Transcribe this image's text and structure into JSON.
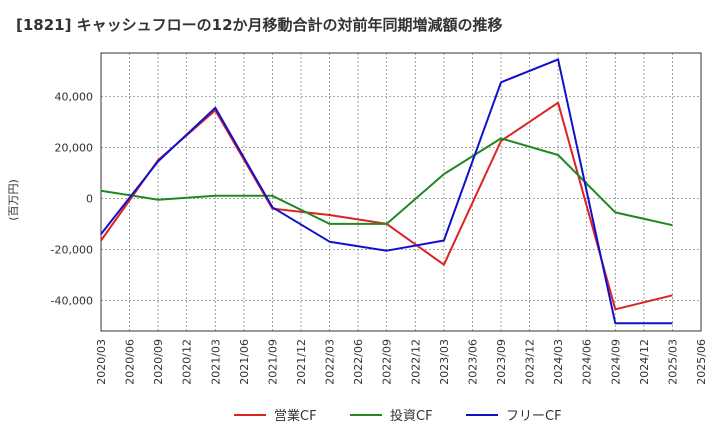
{
  "chart_data": {
    "type": "line",
    "title": "[1821]  キャッシュフローの12か月移動合計の対前年同期増減額の推移",
    "ylabel": "(百万円)",
    "xlabel": "",
    "ylim": [
      -52000,
      57000
    ],
    "yticks": [
      -40000,
      -20000,
      0,
      20000,
      40000
    ],
    "ytick_labels": [
      "-40,000",
      "-20,000",
      "0",
      "20,000",
      "40,000"
    ],
    "x_ticks": [
      "2020/03",
      "2020/06",
      "2020/09",
      "2020/12",
      "2021/03",
      "2021/06",
      "2021/09",
      "2021/12",
      "2022/03",
      "2022/06",
      "2022/09",
      "2022/12",
      "2023/03",
      "2023/06",
      "2023/09",
      "2023/12",
      "2024/03",
      "2024/06",
      "2024/09",
      "2024/12",
      "2025/03",
      "2025/06"
    ],
    "grid": true,
    "legend_position": "bottom",
    "series": [
      {
        "name": "営業CF",
        "color": "#dd2222",
        "points": [
          [
            0,
            -16500
          ],
          [
            2,
            15000
          ],
          [
            4,
            34500
          ],
          [
            6,
            -4000
          ],
          [
            8,
            -6500
          ],
          [
            10,
            -10000
          ],
          [
            12,
            -26000
          ],
          [
            14,
            22500
          ],
          [
            16,
            37500
          ],
          [
            18,
            -43500
          ],
          [
            20,
            -38000
          ]
        ]
      },
      {
        "name": "投資CF",
        "color": "#228822",
        "points": [
          [
            0,
            3000
          ],
          [
            2,
            -500
          ],
          [
            4,
            1000
          ],
          [
            6,
            1000
          ],
          [
            8,
            -10000
          ],
          [
            10,
            -10000
          ],
          [
            12,
            9500
          ],
          [
            14,
            23500
          ],
          [
            16,
            17000
          ],
          [
            18,
            -5500
          ],
          [
            20,
            -10500
          ]
        ]
      },
      {
        "name": "フリーCF",
        "color": "#1111cc",
        "points": [
          [
            0,
            -14000
          ],
          [
            2,
            14500
          ],
          [
            4,
            35500
          ],
          [
            6,
            -3500
          ],
          [
            8,
            -17000
          ],
          [
            10,
            -20500
          ],
          [
            12,
            -16500
          ],
          [
            14,
            45500
          ],
          [
            16,
            54500
          ],
          [
            18,
            -49000
          ],
          [
            20,
            -49000
          ]
        ]
      }
    ]
  }
}
